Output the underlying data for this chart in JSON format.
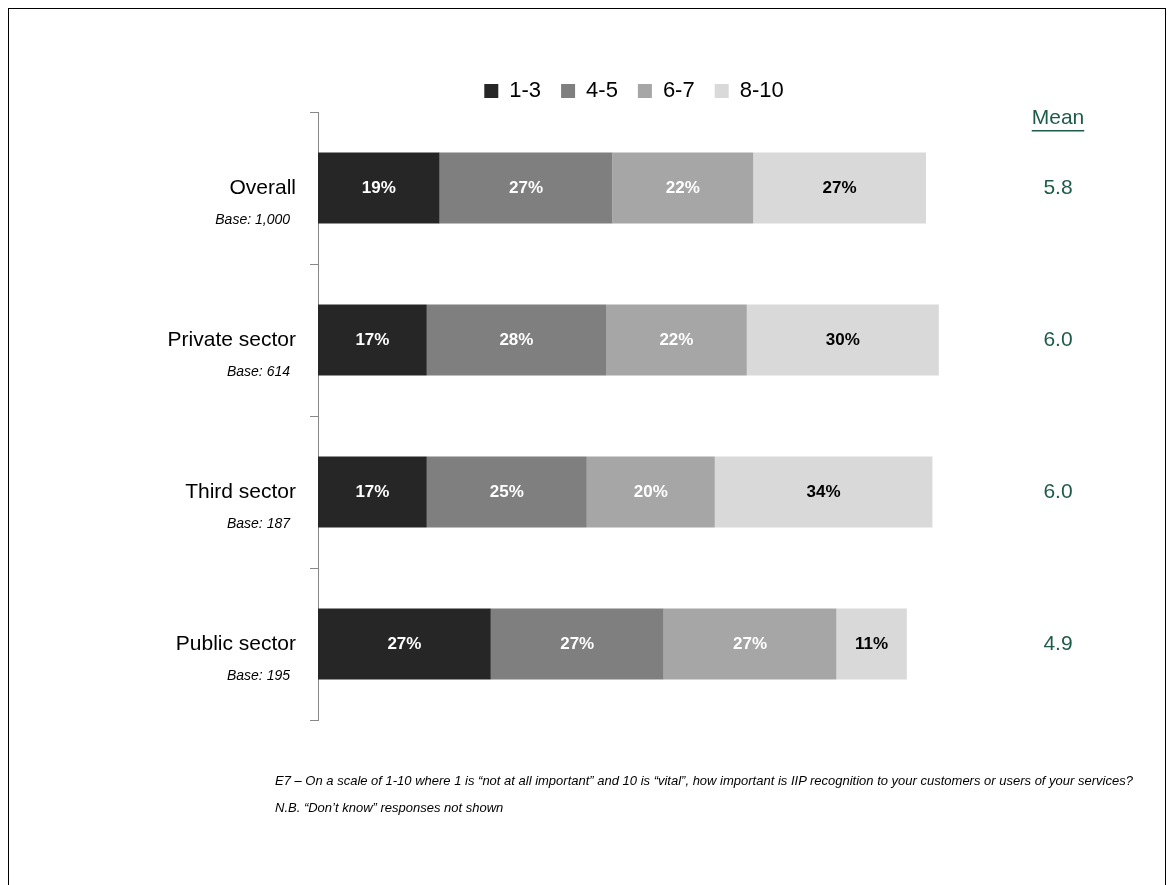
{
  "chart_data": {
    "type": "bar",
    "orientation": "horizontal",
    "stacked": true,
    "categories": [
      "Overall\nBase: 1,000",
      "Private sector\nBase: 614",
      "Third sector\nBase: 187",
      "Public sector\nBase: 195"
    ],
    "series": [
      {
        "name": "1-3",
        "color": "#262626",
        "values": [
          19,
          17,
          17,
          27
        ],
        "value_labels": [
          "19%",
          "17%",
          "17%",
          "27%"
        ]
      },
      {
        "name": "4-5",
        "color": "#7f7f7f",
        "values": [
          27,
          28,
          25,
          27
        ],
        "value_labels": [
          "27%",
          "28%",
          "25%",
          "27%"
        ]
      },
      {
        "name": "6-7",
        "color": "#a6a6a6",
        "values": [
          22,
          22,
          20,
          27
        ],
        "value_labels": [
          "22%",
          "22%",
          "20%",
          "27%"
        ]
      },
      {
        "name": "8-10",
        "color": "#d9d9d9",
        "values": [
          27,
          30,
          34,
          11
        ],
        "value_labels": [
          "27%",
          "30%",
          "34%",
          "11%"
        ]
      }
    ],
    "tick_labels": "y",
    "legend": "top",
    "y2label": "Mean",
    "annotations": [
      "5.8",
      "6.0",
      "6.0",
      "4.9",
      "E7 – On a scale of 1-10 where 1 is “not at all important” and 10 is “vital”, how important is IIP recognition to your customers or users of your services?",
      "N.B. “Don’t know” responses not shown"
    ]
  }
}
